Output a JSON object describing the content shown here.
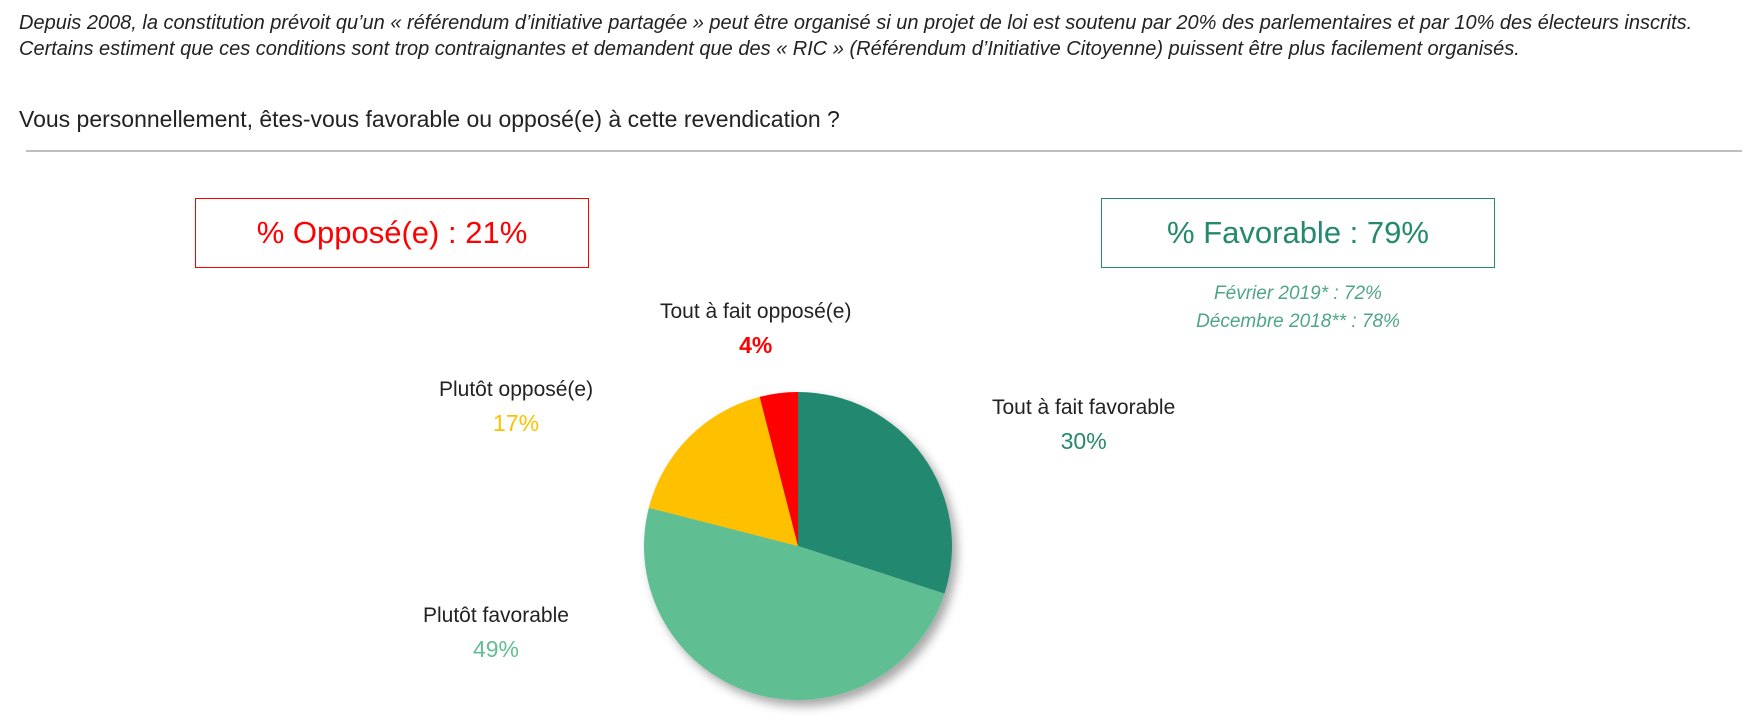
{
  "intro_text": "Depuis 2008, la constitution prévoit qu’un « référendum d’initiative partagée » peut être organisé si un projet de loi est soutenu par 20% des parlementaires et par 10% des électeurs inscrits. Certains estiment que ces conditions sont trop contraignantes et demandent que des « RIC » (Référendum d’Initiative Citoyenne) puissent être plus facilement organisés.",
  "question": "Vous personnellement, êtes-vous favorable ou opposé(e) à cette revendication ?",
  "summary": {
    "opposed": "% Opposé(e) : 21%",
    "favorable": "% Favorable : 79%",
    "trend_1": "Février 2019* : 72%",
    "trend_2": "Décembre 2018** : 78%"
  },
  "colors": {
    "tout_a_fait_favorable": "#24896f",
    "plutot_favorable": "#61bf92",
    "plutot_oppose": "#ffc000",
    "tout_a_fait_oppose": "#ff0000",
    "opposed_box": "#ff0000",
    "favorable_box": "#24896f"
  },
  "chart_data": {
    "type": "pie",
    "categories": [
      "Tout à fait favorable",
      "Plutôt favorable",
      "Plutôt opposé(e)",
      "Tout à fait opposé(e)"
    ],
    "values": [
      30,
      49,
      17,
      4
    ],
    "labels": [
      "30%",
      "49%",
      "17%",
      "4%"
    ],
    "colors": [
      "#24896f",
      "#61bf92",
      "#ffc000",
      "#ff0000"
    ],
    "start": "12 o'clock, clockwise"
  }
}
